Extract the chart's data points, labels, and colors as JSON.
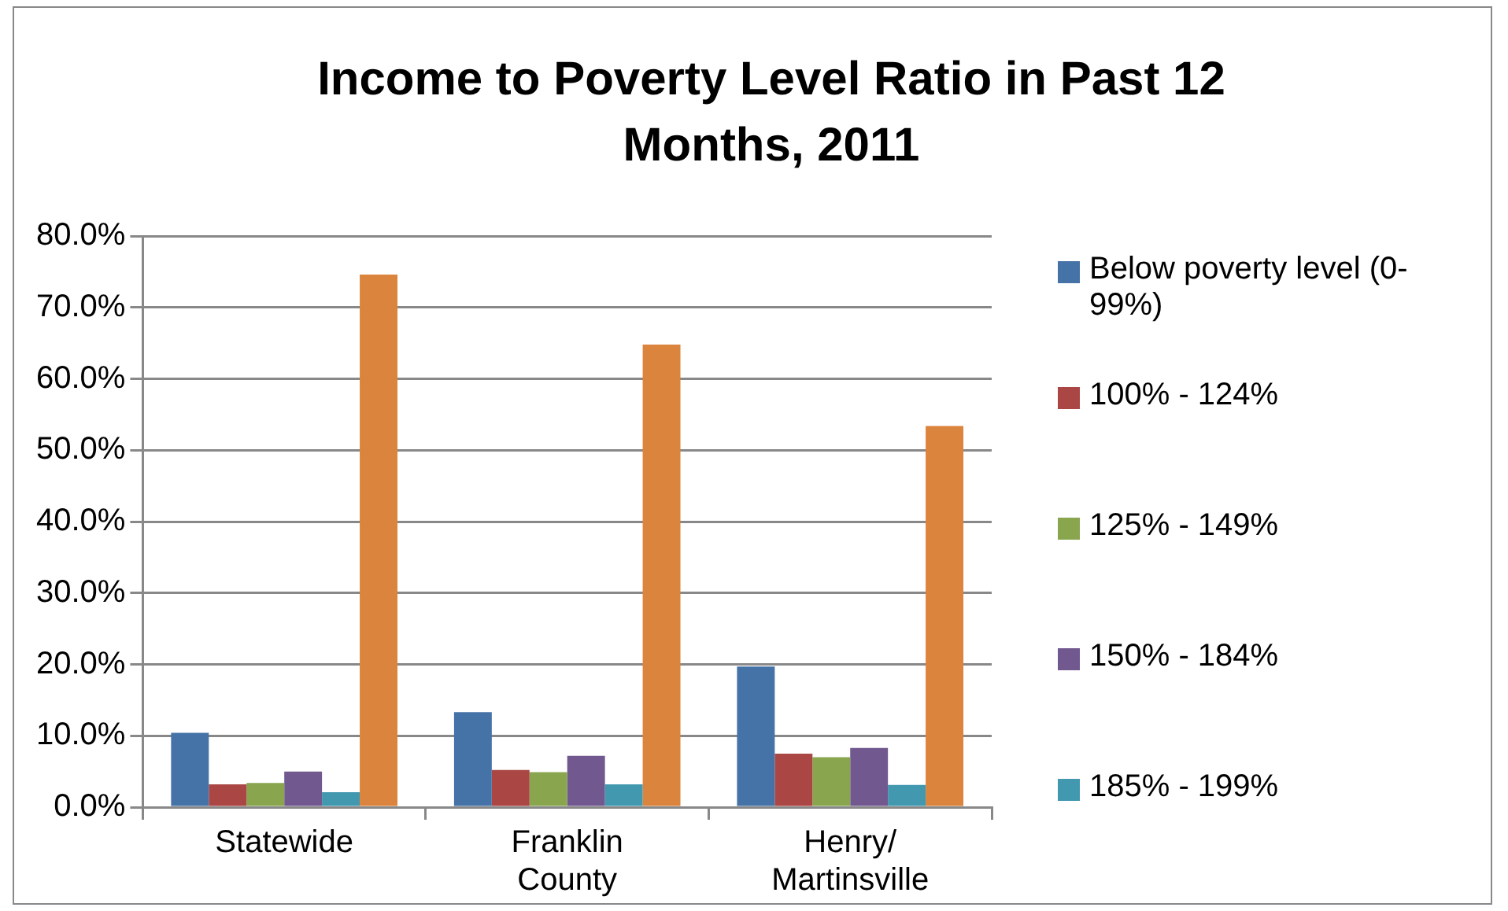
{
  "chart_data": {
    "type": "bar",
    "title": "Income to Poverty Level Ratio in Past 12 Months, 2011",
    "categories": [
      "Statewide",
      "Franklin County",
      "Henry/ Martinsville"
    ],
    "series": [
      {
        "name": "Below poverty level (0-99%)",
        "color": "#4572a7",
        "values": [
          10.4,
          13.3,
          19.7
        ]
      },
      {
        "name": "100% - 124%",
        "color": "#aa4643",
        "values": [
          3.2,
          5.2,
          7.5
        ]
      },
      {
        "name": "125% - 149%",
        "color": "#89a54e",
        "values": [
          3.4,
          4.9,
          7.0
        ]
      },
      {
        "name": "150% - 184%",
        "color": "#71588f",
        "values": [
          5.0,
          7.2,
          8.3
        ]
      },
      {
        "name": "185% - 199%",
        "color": "#4198af",
        "values": [
          2.1,
          3.2,
          3.1
        ]
      },
      {
        "color": "#db843d",
        "values": [
          74.6,
          64.8,
          53.4
        ]
      }
    ],
    "ylim": [
      0,
      80
    ],
    "yticks": [
      {
        "value": 0,
        "label": "0.0%"
      },
      {
        "value": 10,
        "label": "10.0%"
      },
      {
        "value": 20,
        "label": "20.0%"
      },
      {
        "value": 30,
        "label": "30.0%"
      },
      {
        "value": 40,
        "label": "40.0%"
      },
      {
        "value": 50,
        "label": "50.0%"
      },
      {
        "value": 60,
        "label": "60.0%"
      },
      {
        "value": 70,
        "label": "70.0%"
      },
      {
        "value": 80,
        "label": "80.0%"
      }
    ],
    "grid": "y",
    "legend": "right"
  }
}
